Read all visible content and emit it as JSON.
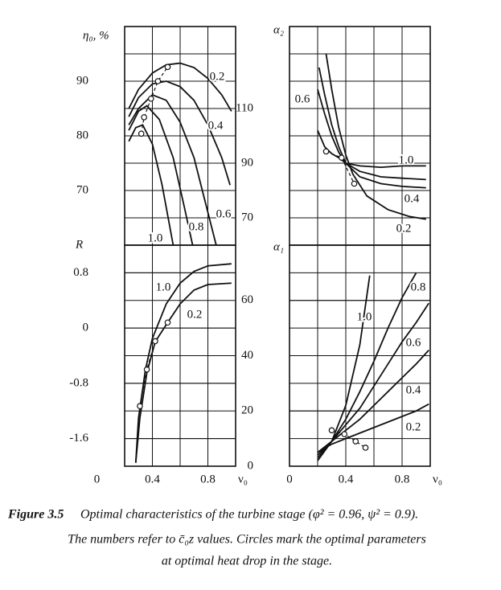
{
  "chart_data": [
    {
      "type": "line",
      "ylabel": "η₀, %",
      "xlim": [
        0.2,
        1.0
      ],
      "ylim": [
        60,
        100
      ],
      "yticks": [
        70,
        80,
        90
      ],
      "grid": true,
      "series": [
        {
          "name": "0.2",
          "x": [
            0.23,
            0.3,
            0.4,
            0.5,
            0.6,
            0.7,
            0.8,
            0.9,
            0.97
          ],
          "values": [
            85,
            88.5,
            91.5,
            93,
            93.3,
            92.5,
            90.5,
            87.5,
            84.5
          ]
        },
        {
          "name": "0.4",
          "x": [
            0.23,
            0.3,
            0.4,
            0.5,
            0.6,
            0.7,
            0.8,
            0.9,
            0.96
          ],
          "values": [
            83.5,
            87,
            89.5,
            90,
            89,
            86.5,
            82,
            76,
            71
          ]
        },
        {
          "name": "0.6",
          "x": [
            0.23,
            0.3,
            0.4,
            0.5,
            0.6,
            0.7,
            0.8,
            0.86
          ],
          "values": [
            82,
            85,
            87.5,
            86.5,
            82.5,
            76,
            66,
            60
          ]
        },
        {
          "name": "0.8",
          "x": [
            0.23,
            0.3,
            0.36,
            0.45,
            0.55,
            0.63,
            0.69
          ],
          "values": [
            81,
            84.5,
            85.5,
            83,
            76,
            67,
            60
          ]
        },
        {
          "name": "1.0",
          "x": [
            0.23,
            0.28,
            0.33,
            0.4,
            0.47,
            0.55
          ],
          "values": [
            79,
            81.5,
            82,
            78.5,
            71,
            60
          ]
        }
      ],
      "optimum": {
        "x": [
          0.32,
          0.34,
          0.39,
          0.44,
          0.51
        ],
        "values": [
          80.4,
          83.4,
          86.8,
          90,
          92.6
        ]
      }
    },
    {
      "type": "line",
      "ylabel": "R",
      "xlabel": "ν₀",
      "xlim": [
        0.2,
        1.0
      ],
      "ylim": [
        -2.0,
        1.2
      ],
      "xticks": [
        0,
        0.4,
        0.8
      ],
      "yticks": [
        0.8,
        0,
        -0.8,
        -1.6
      ],
      "grid": true,
      "series": [
        {
          "name": "1.0",
          "x": [
            0.28,
            0.3,
            0.35,
            0.4,
            0.5,
            0.6,
            0.7,
            0.8,
            0.97
          ],
          "values": [
            -1.95,
            -1.3,
            -0.6,
            -0.15,
            0.35,
            0.65,
            0.82,
            0.9,
            0.93
          ]
        },
        {
          "name": "0.2",
          "x": [
            0.28,
            0.31,
            0.36,
            0.42,
            0.5,
            0.6,
            0.7,
            0.8,
            0.97
          ],
          "values": [
            -1.95,
            -1.3,
            -0.65,
            -0.2,
            0.05,
            0.35,
            0.55,
            0.63,
            0.65
          ]
        }
      ],
      "optimum": {
        "x": [
          0.31,
          0.36,
          0.42,
          0.51
        ],
        "values": [
          -1.13,
          -0.6,
          -0.19,
          0.08
        ]
      }
    },
    {
      "type": "line",
      "ylabel": "α₂",
      "xlim": [
        0,
        1.0
      ],
      "ylim": [
        60,
        140
      ],
      "yticks": [
        70,
        90,
        110
      ],
      "grid": true,
      "series": [
        {
          "name": "0.2",
          "x": [
            0.26,
            0.3,
            0.35,
            0.4,
            0.45,
            0.55,
            0.7,
            0.85,
            0.97
          ],
          "values": [
            130,
            117,
            103,
            93,
            86,
            78,
            73,
            70.5,
            69.5
          ]
        },
        {
          "name": "0.4",
          "x": [
            0.21,
            0.25,
            0.3,
            0.35,
            0.4,
            0.5,
            0.65,
            0.8,
            0.97
          ],
          "values": [
            125,
            115,
            104,
            96,
            90,
            85,
            82.5,
            81.5,
            81
          ]
        },
        {
          "name": "0.6",
          "x": [
            0.2,
            0.25,
            0.3,
            0.35,
            0.4,
            0.5,
            0.65,
            0.8,
            0.97
          ],
          "values": [
            117,
            108,
            100,
            94,
            90,
            87,
            85,
            84.5,
            84
          ]
        },
        {
          "name": "1.0",
          "x": [
            0.2,
            0.25,
            0.3,
            0.35,
            0.4,
            0.5,
            0.65,
            0.8,
            0.97
          ],
          "values": [
            102,
            96,
            93.5,
            92,
            90,
            89,
            88.5,
            89,
            89
          ]
        }
      ],
      "optimum": {
        "x": [
          0.26,
          0.37,
          0.46
        ],
        "values": [
          94.3,
          92,
          82.5
        ]
      }
    },
    {
      "type": "line",
      "ylabel": "α₁",
      "xlabel": "ν₀",
      "xlim": [
        0,
        1.0
      ],
      "ylim": [
        0,
        80
      ],
      "xticks": [
        0,
        0.4,
        0.8
      ],
      "yticks": [
        0,
        20,
        40,
        60
      ],
      "grid": true,
      "series": [
        {
          "name": "1.0",
          "x": [
            0.2,
            0.3,
            0.4,
            0.5,
            0.57
          ],
          "values": [
            2,
            9,
            22,
            44,
            69
          ]
        },
        {
          "name": "0.8",
          "x": [
            0.2,
            0.3,
            0.4,
            0.5,
            0.6,
            0.7,
            0.8,
            0.9
          ],
          "values": [
            3,
            9,
            17,
            27,
            38,
            50,
            61,
            70
          ]
        },
        {
          "name": "0.6",
          "x": [
            0.2,
            0.3,
            0.4,
            0.5,
            0.6,
            0.7,
            0.8,
            0.9,
            0.99
          ],
          "values": [
            4,
            9,
            15,
            21,
            29,
            37,
            45,
            52,
            59
          ]
        },
        {
          "name": "0.4",
          "x": [
            0.2,
            0.3,
            0.4,
            0.5,
            0.6,
            0.7,
            0.8,
            0.9,
            0.99
          ],
          "values": [
            5,
            9,
            13,
            17,
            22,
            27,
            32,
            37,
            42
          ]
        },
        {
          "name": "0.2",
          "x": [
            0.2,
            0.3,
            0.4,
            0.5,
            0.6,
            0.7,
            0.8,
            0.9,
            0.99
          ],
          "values": [
            5,
            8,
            10,
            12,
            14,
            16,
            18,
            20,
            22.5
          ]
        }
      ],
      "optimum": {
        "x": [
          0.3,
          0.39,
          0.47,
          0.54
        ],
        "values": [
          13,
          11.6,
          9,
          6.7
        ]
      }
    }
  ],
  "caption": {
    "label": "Figure 3.5",
    "lines": [
      "Optimal characteristics of the turbine stage (φ² = 0.96,  ψ² = 0.9).",
      "The numbers refer to c̄₀z values. Circles mark the optimal parameters",
      "at optimal heat drop in the stage."
    ]
  }
}
